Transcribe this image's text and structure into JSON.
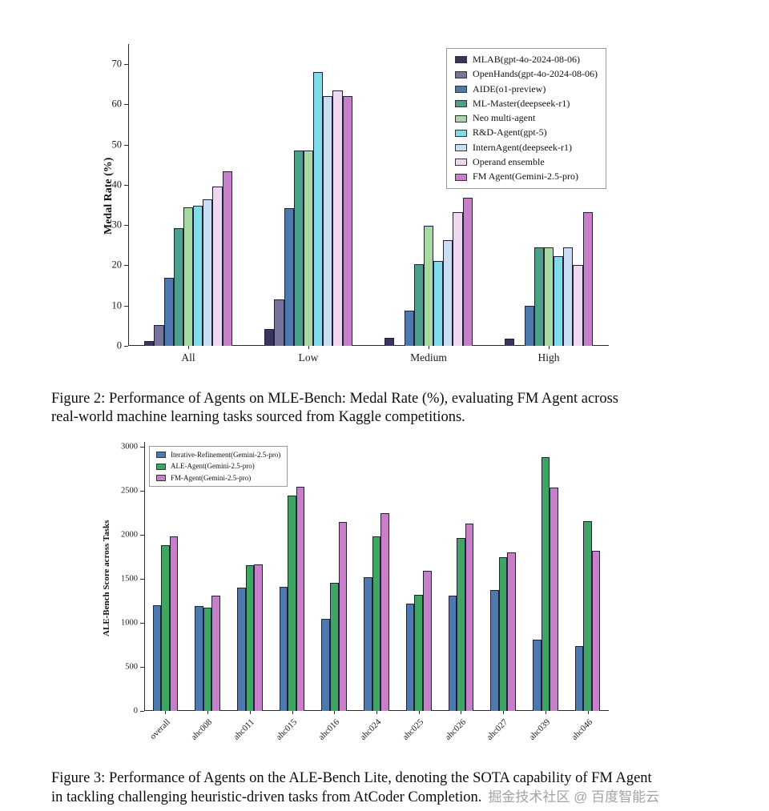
{
  "figure2": {
    "caption_line1": "Figure 2: Performance of Agents on MLE-Bench: Medal Rate (%), evaluating FM Agent across",
    "caption_line2": "real-world machine learning tasks sourced from Kaggle competitions."
  },
  "figure3": {
    "caption_line1": "Figure 3: Performance of Agents on the ALE-Bench Lite, denoting the SOTA capability of FM Agent",
    "caption_line2": "in tackling challenging heuristic-driven tasks from AtCoder Completion."
  },
  "watermark": "掘金技术社区 @ 百度智能云",
  "chart_data": [
    {
      "type": "bar",
      "title": "",
      "xlabel": "",
      "ylabel": "Medal Rate (%)",
      "ylim": [
        0,
        75
      ],
      "yticks": [
        0,
        10,
        20,
        30,
        40,
        50,
        60,
        70
      ],
      "grid": false,
      "legend_position": "top-right",
      "categories": [
        "All",
        "Low",
        "Medium",
        "High"
      ],
      "series": [
        {
          "name": "MLAB(gpt-4o-2024-08-06)",
          "color": "#38355f",
          "values": [
            1.2,
            4.2,
            2.0,
            1.8
          ]
        },
        {
          "name": "OpenHands(gpt-4o-2024-08-06)",
          "color": "#76749c",
          "values": [
            5.1,
            11.5,
            0,
            0
          ]
        },
        {
          "name": "AIDE(o1-preview)",
          "color": "#4d79ae",
          "values": [
            16.9,
            34.3,
            8.8,
            10.0
          ]
        },
        {
          "name": "ML-Master(deepseek-r1)",
          "color": "#4d9e8b",
          "values": [
            29.3,
            48.5,
            20.2,
            24.4
          ]
        },
        {
          "name": "Neo multi-agent",
          "color": "#a9d9a3",
          "values": [
            34.5,
            48.6,
            29.8,
            24.4
          ]
        },
        {
          "name": "R&D-Agent(gpt-5)",
          "color": "#7edce8",
          "values": [
            34.8,
            68.1,
            21.0,
            22.2
          ]
        },
        {
          "name": "InternAgent(deepseek-r1)",
          "color": "#c8dcf2",
          "values": [
            36.4,
            62.0,
            26.3,
            24.5
          ]
        },
        {
          "name": "Operand ensemble",
          "color": "#eed8f0",
          "values": [
            39.6,
            63.5,
            33.3,
            20.0
          ]
        },
        {
          "name": "FM Agent(Gemini-2.5-pro)",
          "color": "#c77fc7",
          "values": [
            43.4,
            62.0,
            36.8,
            33.3
          ]
        }
      ]
    },
    {
      "type": "bar",
      "title": "",
      "xlabel": "",
      "ylabel": "ALE-Bench Score across Tasks",
      "ylim": [
        0,
        3050
      ],
      "yticks": [
        0,
        500,
        1000,
        1500,
        2000,
        2500,
        3000
      ],
      "grid": false,
      "legend_position": "top-left",
      "categories": [
        "overall",
        "ahc008",
        "ahc011",
        "ahc015",
        "ahc016",
        "ahc024",
        "ahc025",
        "ahc026",
        "ahc027",
        "ahc039",
        "ahc046"
      ],
      "series": [
        {
          "name": "Iterative-Refinement(Gemini-2.5-pro)",
          "color": "#4d79ae",
          "values": [
            1200,
            1190,
            1395,
            1410,
            1040,
            1520,
            1215,
            1310,
            1370,
            810,
            735
          ]
        },
        {
          "name": "ALE-Agent(Gemini-2.5-pro)",
          "color": "#3ea563",
          "values": [
            1875,
            1170,
            1650,
            2440,
            1455,
            1980,
            1320,
            1960,
            1745,
            2880,
            2150
          ]
        },
        {
          "name": "FM-Agent(Gemini-2.5-pro)",
          "color": "#c77fc7",
          "values": [
            1980,
            1310,
            1660,
            2545,
            2145,
            2240,
            1590,
            2120,
            1800,
            2530,
            1820
          ]
        }
      ]
    }
  ]
}
